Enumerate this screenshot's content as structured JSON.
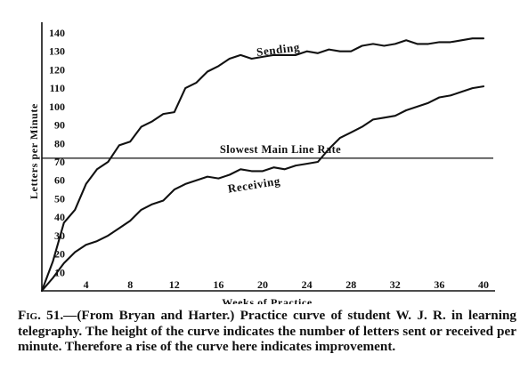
{
  "chart_data": {
    "type": "line",
    "xlabel": "Weeks of Practice",
    "ylabel": "Letters per Minute",
    "xlim": [
      0,
      40
    ],
    "ylim": [
      0,
      140
    ],
    "x_ticks": [
      "4",
      "8",
      "12",
      "16",
      "20",
      "24",
      "28",
      "32",
      "36",
      "40"
    ],
    "y_ticks": [
      "10",
      "20",
      "30",
      "40",
      "50",
      "60",
      "70",
      "80",
      "90",
      "100",
      "110",
      "120",
      "130",
      "140"
    ],
    "grid": false,
    "series": [
      {
        "name": "Sending",
        "x": [
          0,
          1,
          2,
          3,
          4,
          5,
          6,
          7,
          8,
          9,
          10,
          11,
          12,
          13,
          14,
          15,
          16,
          17,
          18,
          19,
          20,
          21,
          22,
          23,
          24,
          25,
          26,
          27,
          28,
          29,
          30,
          31,
          32,
          33,
          34,
          35,
          36,
          37,
          38,
          39,
          40
        ],
        "y": [
          0,
          16,
          37,
          44,
          58,
          66,
          70,
          79,
          81,
          89,
          92,
          96,
          97,
          110,
          113,
          119,
          122,
          126,
          128,
          126,
          127,
          128,
          128,
          128,
          130,
          129,
          131,
          130,
          130,
          133,
          134,
          133,
          134,
          136,
          134,
          134,
          135,
          135,
          136,
          137,
          137
        ]
      },
      {
        "name": "Receiving",
        "x": [
          0,
          1,
          2,
          3,
          4,
          5,
          6,
          7,
          8,
          9,
          10,
          11,
          12,
          13,
          14,
          15,
          16,
          17,
          18,
          19,
          20,
          21,
          22,
          23,
          24,
          25,
          26,
          27,
          28,
          29,
          30,
          31,
          32,
          33,
          34,
          35,
          36,
          37,
          38,
          39,
          40
        ],
        "y": [
          0,
          7,
          15,
          21,
          25,
          27,
          30,
          34,
          38,
          44,
          47,
          49,
          55,
          58,
          60,
          62,
          61,
          63,
          66,
          65,
          65,
          67,
          66,
          68,
          69,
          70,
          77,
          83,
          86,
          89,
          93,
          94,
          95,
          98,
          100,
          102,
          105,
          106,
          108,
          110,
          111
        ]
      }
    ],
    "reference_line": {
      "label": "Slowest Main Line Rate",
      "y": 72
    }
  },
  "caption": {
    "lead": "Fig. 51.",
    "text": "—(From Bryan and Harter.)  Practice curve of student W. J. R. in learning telegraphy. The height of the curve indicates the number of letters sent or received per minute. Therefore a rise of the curve here indicates improvement."
  }
}
